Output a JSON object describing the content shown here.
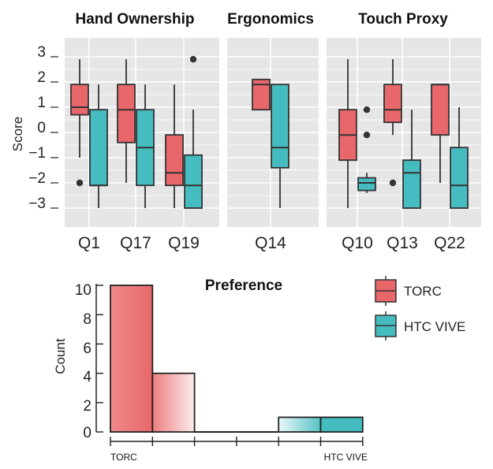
{
  "colors": {
    "torc": "#e8676a",
    "htc_vive": "#45bcc0",
    "panel_bg": "#e6e6e6",
    "grid": "#ffffff",
    "whisker": "#333333"
  },
  "chart_data": [
    {
      "type": "boxplot",
      "ylabel": "Score",
      "ylim": [
        -3.4,
        3.4
      ],
      "yticks": [
        "3",
        "2",
        "1",
        "0",
        "−1",
        "−2",
        "−3"
      ],
      "ytick_values": [
        3,
        2,
        1,
        0,
        -1,
        -2,
        -3
      ],
      "grid": true,
      "panels": [
        {
          "title": "Hand Ownership",
          "categories": [
            "Q1",
            "Q17",
            "Q19"
          ],
          "groups": [
            {
              "category": "Q1",
              "torc": {
                "whisker_low": -1.0,
                "q1": 0.7,
                "median": 1.0,
                "q3": 1.9,
                "whisker_high": 2.9,
                "outliers": []
              },
              "htc_vive": {
                "whisker_low": -3.0,
                "q1": -2.1,
                "median": -2.1,
                "q3": 0.9,
                "whisker_high": 1.9,
                "outliers": []
              },
              "outliers_between": [
                -2.0
              ]
            },
            {
              "category": "Q17",
              "torc": {
                "whisker_low": -2.0,
                "q1": -0.4,
                "median": 0.9,
                "q3": 1.9,
                "whisker_high": 2.9,
                "outliers": []
              },
              "htc_vive": {
                "whisker_low": -3.0,
                "q1": -2.1,
                "median": -0.6,
                "q3": 0.9,
                "whisker_high": 1.9,
                "outliers": []
              }
            },
            {
              "category": "Q19",
              "torc": {
                "whisker_low": -3.0,
                "q1": -2.1,
                "median": -1.6,
                "q3": -0.1,
                "whisker_high": 1.9,
                "outliers": []
              },
              "htc_vive": {
                "whisker_low": -3.0,
                "q1": -3.0,
                "median": -2.1,
                "q3": -0.9,
                "whisker_high": 0.9,
                "outliers": [
                  2.9
                ]
              }
            }
          ]
        },
        {
          "title": "Ergonomics",
          "categories": [
            "Q14"
          ],
          "groups": [
            {
              "category": "Q14",
              "torc": {
                "whisker_low": 0.9,
                "q1": 0.9,
                "median": 1.9,
                "q3": 2.1,
                "whisker_high": 2.1,
                "outliers": []
              },
              "htc_vive": {
                "whisker_low": -3.0,
                "q1": -1.4,
                "median": -0.6,
                "q3": 1.9,
                "whisker_high": 1.9,
                "outliers": []
              }
            }
          ]
        },
        {
          "title": "Touch Proxy",
          "categories": [
            "Q10",
            "Q13",
            "Q22"
          ],
          "groups": [
            {
              "category": "Q10",
              "torc": {
                "whisker_low": -3.0,
                "q1": -1.1,
                "median": -0.1,
                "q3": 0.9,
                "whisker_high": 2.9,
                "outliers": []
              },
              "htc_vive": {
                "whisker_low": -2.4,
                "q1": -2.3,
                "median": -2.0,
                "q3": -1.8,
                "whisker_high": -1.6,
                "outliers": []
              },
              "outliers_between": [
                0.9,
                -0.1
              ]
            },
            {
              "category": "Q13",
              "torc": {
                "whisker_low": -0.1,
                "q1": 0.4,
                "median": 0.9,
                "q3": 1.9,
                "whisker_high": 2.9,
                "outliers": []
              },
              "htc_vive": {
                "whisker_low": -3.0,
                "q1": -3.0,
                "median": -1.6,
                "q3": -1.1,
                "whisker_high": 0.9,
                "outliers": []
              },
              "outliers_between": [
                -2.0
              ]
            },
            {
              "category": "Q22",
              "torc": {
                "whisker_low": -2.0,
                "q1": -0.1,
                "median": 1.9,
                "q3": 1.9,
                "whisker_high": 1.9,
                "outliers": []
              },
              "htc_vive": {
                "whisker_low": -3.0,
                "q1": -3.0,
                "median": -2.1,
                "q3": -0.6,
                "whisker_high": 1.0,
                "outliers": []
              }
            }
          ]
        }
      ]
    },
    {
      "type": "bar",
      "title": "Preference",
      "ylabel": "Count",
      "ylim": [
        0,
        10
      ],
      "yticks": [
        0,
        2,
        4,
        6,
        8,
        10
      ],
      "bins": 6,
      "values": [
        10,
        4,
        0,
        0,
        1,
        1
      ],
      "bar_styles": [
        "torc",
        "torc-fade",
        "none",
        "none",
        "vive-fade",
        "htc_vive"
      ],
      "x_end_labels": [
        "TORC",
        "HTC VIVE"
      ]
    }
  ],
  "legend": {
    "placement": "right",
    "items": [
      {
        "label": "TORC",
        "key": "torc"
      },
      {
        "label": "HTC VIVE",
        "key": "htc_vive"
      }
    ]
  }
}
